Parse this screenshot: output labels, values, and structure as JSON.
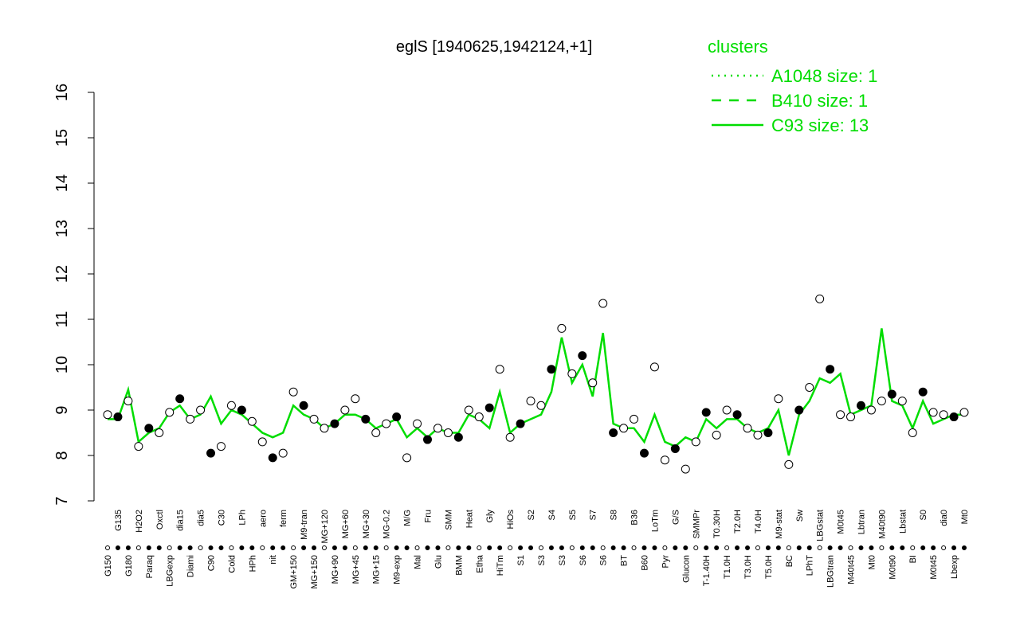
{
  "chart_data": {
    "type": "line",
    "title": "eglS [1940625,1942124,+1]",
    "categories": [
      "G150",
      "G135",
      "G180",
      "H2O2",
      "Paraq",
      "Oxctl",
      "LBGexp",
      "dia15",
      "Diami",
      "dia5",
      "C90",
      "C30",
      "Cold",
      "LPh",
      "HPh",
      "aero",
      "nit",
      "ferm",
      "GM+150",
      "M9-tran",
      "MG+150",
      "MG+120",
      "MG+90",
      "MG+60",
      "MG+45",
      "MG+30",
      "MG+15",
      "MG-0.2",
      "M9-exp",
      "M/G",
      "Mal",
      "Fru",
      "Glu",
      "SMM",
      "BMM",
      "Heat",
      "Etha",
      "Gly",
      "HiTm",
      "HiOs",
      "S1",
      "S2",
      "S3",
      "S4",
      "S3",
      "S5",
      "S6",
      "S7",
      "S6",
      "S8",
      "BT",
      "B36",
      "B60",
      "LoTm",
      "Pyr",
      "G/S",
      "Glucon",
      "SMMPr",
      "T-1.40H",
      "T0.30H",
      "T1.0H",
      "T2.0H",
      "T3.0H",
      "T4.0H",
      "T5.0H",
      "M9-stat",
      "BC",
      "Sw",
      "LPhT",
      "LBGstat",
      "LBGtran",
      "M0t45",
      "M40t45",
      "Lbtran",
      "Mt0",
      "M40t90",
      "M0t90",
      "Lbstat",
      "BI",
      "S0",
      "M0t45",
      "dia0",
      "Lbexp",
      "Mt0"
    ],
    "points": [
      8.9,
      8.85,
      9.2,
      8.2,
      8.6,
      8.5,
      8.95,
      9.25,
      8.8,
      9.0,
      8.05,
      8.2,
      9.1,
      9.0,
      8.75,
      8.3,
      7.95,
      8.05,
      9.4,
      9.1,
      8.8,
      8.6,
      8.7,
      9.0,
      9.25,
      8.8,
      8.5,
      8.7,
      8.85,
      7.95,
      8.7,
      8.35,
      8.6,
      8.5,
      8.4,
      9.0,
      8.85,
      9.05,
      9.9,
      8.4,
      8.7,
      9.2,
      9.1,
      9.9,
      10.8,
      9.8,
      10.2,
      9.6,
      11.35,
      8.5,
      8.6,
      8.8,
      8.05,
      9.95,
      7.9,
      8.15,
      7.7,
      8.3,
      8.95,
      8.45,
      9.0,
      8.9,
      8.6,
      8.45,
      8.5,
      9.25,
      7.8,
      9.0,
      9.5,
      11.45,
      9.9,
      8.9,
      8.85,
      9.1,
      9.0,
      9.2,
      9.35,
      9.2,
      8.5,
      9.4,
      8.95,
      8.9,
      8.85,
      8.95
    ],
    "series": [
      {
        "name": "C93 size: 13",
        "color": "#00dd00",
        "values": [
          8.8,
          8.8,
          9.45,
          8.3,
          8.5,
          8.6,
          8.95,
          9.1,
          8.8,
          8.9,
          9.3,
          8.7,
          9.0,
          8.9,
          8.7,
          8.5,
          8.4,
          8.5,
          9.1,
          8.9,
          8.8,
          8.6,
          8.7,
          8.9,
          8.9,
          8.8,
          8.6,
          8.7,
          8.8,
          8.4,
          8.6,
          8.4,
          8.6,
          8.5,
          8.5,
          8.9,
          8.8,
          8.6,
          9.4,
          8.5,
          8.7,
          8.8,
          8.9,
          9.4,
          10.6,
          9.6,
          10.0,
          9.3,
          10.7,
          8.7,
          8.6,
          8.6,
          8.3,
          8.9,
          8.3,
          8.2,
          8.4,
          8.3,
          8.8,
          8.6,
          8.8,
          8.8,
          8.6,
          8.5,
          8.6,
          9.0,
          8.0,
          8.9,
          9.2,
          9.7,
          9.6,
          9.8,
          8.9,
          9.0,
          9.1,
          10.8,
          9.2,
          9.1,
          8.6,
          9.2,
          8.7,
          8.8,
          8.9,
          8.9
        ]
      }
    ],
    "legend": {
      "title": "clusters",
      "entries": [
        {
          "name": "A1048 size: 1",
          "dash": "2,6"
        },
        {
          "name": "B410 size: 1",
          "dash": "12,10"
        },
        {
          "name": "C93 size: 13",
          "dash": "none"
        }
      ]
    },
    "ylim": [
      7,
      16
    ],
    "yticks": [
      7,
      8,
      9,
      10,
      11,
      12,
      13,
      14,
      15,
      16
    ]
  }
}
